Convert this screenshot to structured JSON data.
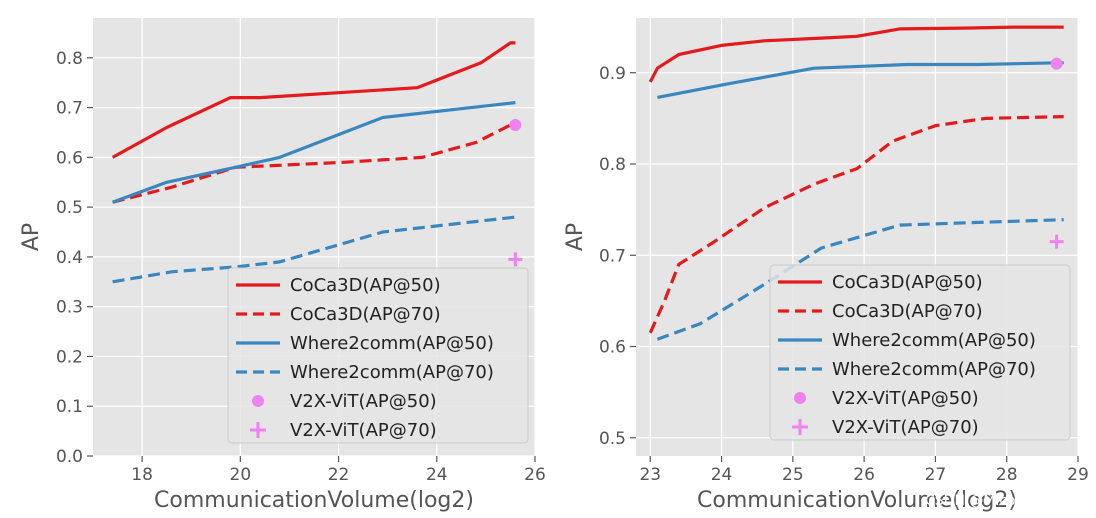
{
  "watermark": "CSDN @Micosoft143",
  "colors": {
    "red": "#e41a1c",
    "blue": "#3a87c0",
    "pink": "#ee82ee",
    "panel_bg": "#e5e5e5",
    "grid": "#ffffff"
  },
  "chart_data": [
    {
      "type": "line",
      "title": "",
      "xlabel": "CommunicationVolume(log2)",
      "ylabel": "AP",
      "xlim": [
        17.0,
        26.0
      ],
      "ylim": [
        0.0,
        0.88
      ],
      "xticks": [
        18,
        20,
        22,
        24,
        26
      ],
      "yticks": [
        0.0,
        0.1,
        0.2,
        0.3,
        0.4,
        0.5,
        0.6,
        0.7,
        0.8
      ],
      "grid": true,
      "legend_position": "lower-right",
      "series": [
        {
          "name": "CoCa3D(AP@50)",
          "color": "red",
          "style": "solid",
          "x": [
            17.4,
            18.5,
            19.8,
            20.4,
            22.0,
            23.6,
            24.9,
            25.5,
            25.6
          ],
          "y": [
            0.6,
            0.66,
            0.72,
            0.72,
            0.73,
            0.74,
            0.79,
            0.83,
            0.83
          ]
        },
        {
          "name": "CoCa3D(AP@70)",
          "color": "red",
          "style": "dashed",
          "x": [
            17.4,
            18.6,
            19.9,
            22.1,
            23.7,
            24.8,
            25.6
          ],
          "y": [
            0.51,
            0.54,
            0.58,
            0.59,
            0.6,
            0.63,
            0.67
          ]
        },
        {
          "name": "Where2comm(AP@50)",
          "color": "blue",
          "style": "solid",
          "x": [
            17.4,
            18.5,
            19.9,
            20.8,
            22.9,
            25.6
          ],
          "y": [
            0.51,
            0.55,
            0.58,
            0.6,
            0.68,
            0.71
          ]
        },
        {
          "name": "Where2comm(AP@70)",
          "color": "blue",
          "style": "dashed",
          "x": [
            17.4,
            18.6,
            19.9,
            20.8,
            22.9,
            25.6
          ],
          "y": [
            0.35,
            0.37,
            0.38,
            0.39,
            0.45,
            0.48
          ]
        },
        {
          "name": "V2X-ViT(AP@50)",
          "color": "pink",
          "style": "circle",
          "x": [
            25.6
          ],
          "y": [
            0.665
          ]
        },
        {
          "name": "V2X-ViT(AP@70)",
          "color": "pink",
          "style": "plus",
          "x": [
            25.6
          ],
          "y": [
            0.395
          ]
        }
      ]
    },
    {
      "type": "line",
      "title": "",
      "xlabel": "CommunicationVolume(log2)",
      "ylabel": "AP",
      "xlim": [
        22.8,
        29.0
      ],
      "ylim": [
        0.48,
        0.96
      ],
      "xticks": [
        23,
        24,
        25,
        26,
        27,
        28,
        29
      ],
      "yticks": [
        0.5,
        0.6,
        0.7,
        0.8,
        0.9
      ],
      "grid": true,
      "legend_position": "lower-right",
      "series": [
        {
          "name": "CoCa3D(AP@50)",
          "color": "red",
          "style": "solid",
          "x": [
            23.0,
            23.1,
            23.4,
            24.0,
            24.6,
            25.4,
            25.9,
            26.5,
            27.5,
            28.1,
            28.8
          ],
          "y": [
            0.89,
            0.905,
            0.92,
            0.93,
            0.935,
            0.938,
            0.94,
            0.948,
            0.949,
            0.95,
            0.95
          ]
        },
        {
          "name": "CoCa3D(AP@70)",
          "color": "red",
          "style": "dashed",
          "x": [
            23.0,
            23.2,
            23.4,
            23.9,
            24.6,
            25.3,
            25.9,
            26.4,
            27.0,
            27.7,
            28.8
          ],
          "y": [
            0.615,
            0.65,
            0.69,
            0.715,
            0.752,
            0.778,
            0.795,
            0.825,
            0.842,
            0.85,
            0.852
          ]
        },
        {
          "name": "Where2comm(AP@50)",
          "color": "blue",
          "style": "solid",
          "x": [
            23.1,
            24.1,
            25.3,
            26.6,
            27.6,
            28.8
          ],
          "y": [
            0.873,
            0.888,
            0.905,
            0.909,
            0.909,
            0.911
          ]
        },
        {
          "name": "Where2comm(AP@70)",
          "color": "blue",
          "style": "dashed",
          "x": [
            23.1,
            23.7,
            24.6,
            25.4,
            26.5,
            27.6,
            28.8
          ],
          "y": [
            0.608,
            0.625,
            0.668,
            0.708,
            0.733,
            0.736,
            0.739
          ]
        },
        {
          "name": "V2X-ViT(AP@50)",
          "color": "pink",
          "style": "circle",
          "x": [
            28.7
          ],
          "y": [
            0.91
          ]
        },
        {
          "name": "V2X-ViT(AP@70)",
          "color": "pink",
          "style": "plus",
          "x": [
            28.7
          ],
          "y": [
            0.715
          ]
        }
      ]
    }
  ]
}
